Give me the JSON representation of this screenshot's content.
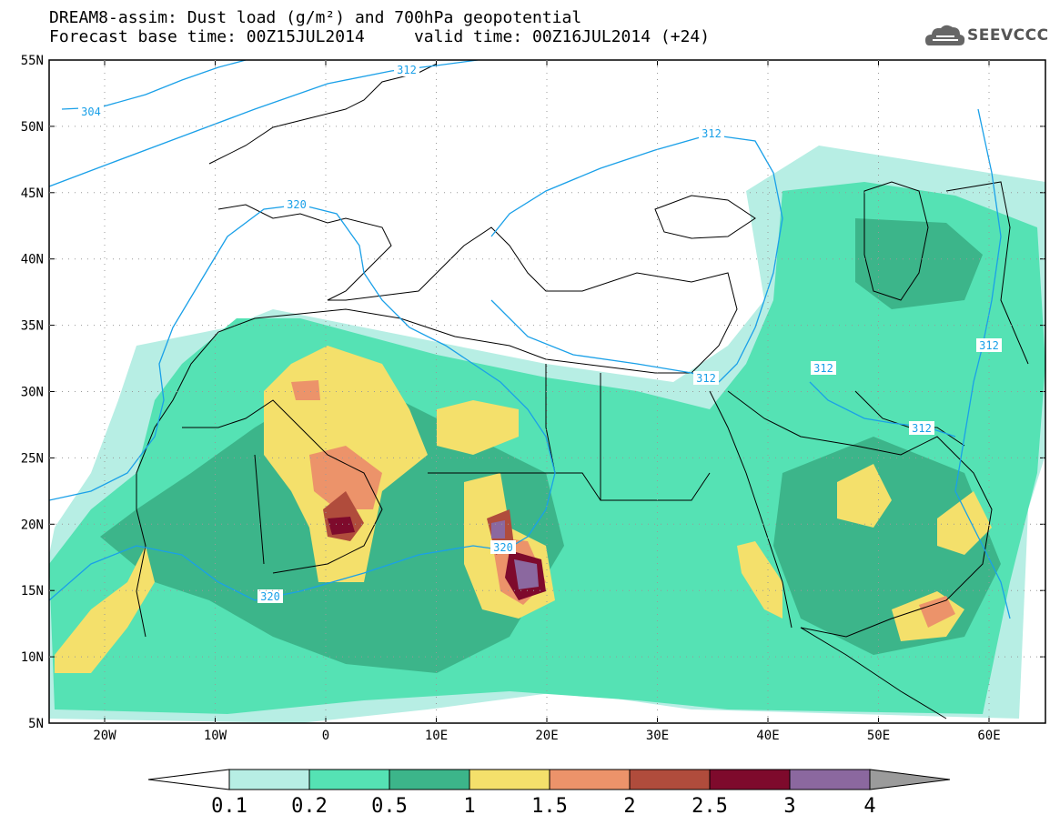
{
  "header": {
    "title_line1": "DREAM8-assim: Dust load (g/m²) and 700hPa geopotential",
    "title_line2": "Forecast base time: 00Z15JUL2014     valid time: 00Z16JUL2014 (+24)",
    "logo_text": "SEEVCCC"
  },
  "map": {
    "lat_labels": [
      "55N",
      "50N",
      "45N",
      "40N",
      "35N",
      "30N",
      "25N",
      "20N",
      "15N",
      "10N",
      "5N"
    ],
    "lon_labels": [
      "20W",
      "10W",
      "0",
      "10E",
      "20E",
      "30E",
      "40E",
      "50E",
      "60E"
    ],
    "contour_labels": [
      "304",
      "312",
      "312",
      "320",
      "320",
      "320",
      "312",
      "312",
      "312",
      "312"
    ],
    "contour_color": "#1aa0e8"
  },
  "colorbar": {
    "levels": [
      "0.1",
      "0.2",
      "0.5",
      "1",
      "1.5",
      "2",
      "2.5",
      "3",
      "4"
    ],
    "colors": [
      "#b7eee4",
      "#55e2b4",
      "#3cb58a",
      "#f4e06b",
      "#ec936a",
      "#b04c3c",
      "#7e0a2c",
      "#8b689f"
    ],
    "overflow_color": "#9b9b9b"
  }
}
